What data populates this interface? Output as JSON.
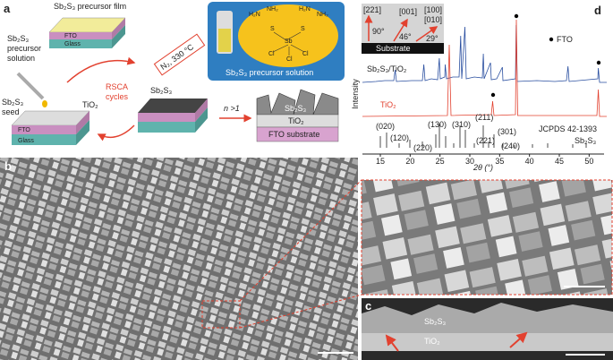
{
  "panel_a": {
    "label": "a",
    "film_title": "Sb₂S₃ precursor film",
    "solution_lines": [
      "Sb₂S₃",
      "precursor",
      "solution"
    ],
    "seed_lines": [
      "Sb₂S₃",
      "seed"
    ],
    "fto": "FTO",
    "glass": "Glass",
    "tio2": "TiO₂",
    "anneal": "N₂, 330 °C",
    "cycle_lines": [
      "RSCA",
      "cycles"
    ],
    "product": "Sb₂S₃",
    "repeat": "n >1",
    "cross_section": {
      "absorber": "Sb₂S₃",
      "tio2": "TiO₂",
      "substrate": "FTO substrate"
    },
    "molecule_atoms": [
      "H₂N",
      "NH₂",
      "H₂N",
      "NH₂",
      "S",
      "S",
      "Sb",
      "Cl",
      "Cl",
      "Cl"
    ],
    "box_caption": "Sb₂S₃ precursor solution"
  },
  "panel_b": {
    "label": "b"
  },
  "panel_c": {
    "label": "c",
    "absorber": "Sb₂S₃",
    "tio2": "TiO₂"
  },
  "panel_d": {
    "label": "d",
    "y_label": "Intensity",
    "x_label": "2θ (°)",
    "xlim": [
      12,
      52.5
    ],
    "xticks": [
      15,
      20,
      25,
      30,
      35,
      40,
      45,
      50
    ],
    "inset": {
      "directions": [
        "[221]",
        "[001]",
        "[100]",
        "[010]"
      ],
      "angles": [
        "90°",
        "46°",
        "29°"
      ],
      "substrate": "Substrate"
    },
    "fto_marker": "FTO",
    "traces": [
      "Sb₂S₃/TiO₂",
      "TiO₂"
    ],
    "reference": "JCPDS 42-1393",
    "reference_phase": "Sb₂S₃",
    "peaks": [
      "(020)",
      "(120)",
      "(220)",
      "(130)",
      "(310)",
      "(211)",
      "(221)",
      "(301)",
      "(240)"
    ]
  }
}
